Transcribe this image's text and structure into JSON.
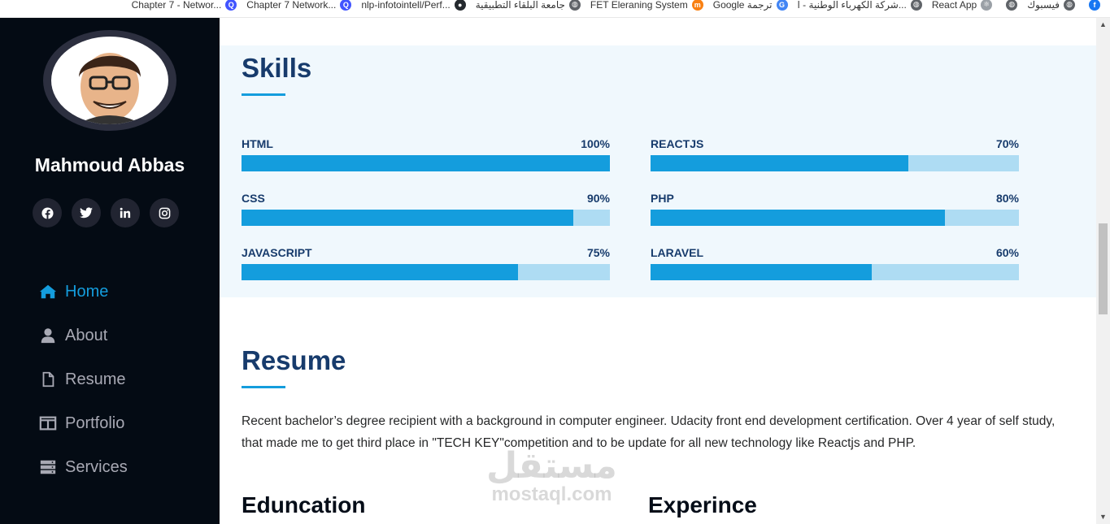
{
  "bookmarks": [
    {
      "label": "Chapter 7 - Networ...",
      "icon": "quizlet-icon",
      "color": "#4255ff"
    },
    {
      "label": "Chapter 7 Network...",
      "icon": "quizlet-icon",
      "color": "#4255ff"
    },
    {
      "label": "nlp-infotointell/Perf...",
      "icon": "github-icon",
      "color": "#24292e"
    },
    {
      "label": "جامعة البلقاء التطبيقية",
      "icon": "globe-icon",
      "color": "#5f6368"
    },
    {
      "label": "FET Eleraning System",
      "icon": "moodle-icon",
      "color": "#f98012"
    },
    {
      "label": "Google ترجمة",
      "icon": "translate-icon",
      "color": "#4285f4"
    },
    {
      "label": "شركة الكهرباء الوطنية - ا...",
      "icon": "globe-icon",
      "color": "#5f6368"
    },
    {
      "label": "React App",
      "icon": "react-icon",
      "color": "#9aa0a6"
    },
    {
      "label": "",
      "icon": "globe-icon",
      "color": "#5f6368"
    },
    {
      "label": "فيسبوك",
      "icon": "globe-icon",
      "color": "#5f6368"
    },
    {
      "label": "",
      "icon": "facebook-icon",
      "color": "#1877f2"
    }
  ],
  "profile": {
    "name": "Mahmoud Abbas"
  },
  "socials": [
    {
      "name": "facebook-icon",
      "glyph": "f"
    },
    {
      "name": "twitter-icon",
      "glyph": "t"
    },
    {
      "name": "linkedin-icon",
      "glyph": "in"
    },
    {
      "name": "instagram-icon",
      "glyph": "◎"
    }
  ],
  "nav": [
    {
      "label": "Home",
      "icon": "home-icon",
      "active": true
    },
    {
      "label": "About",
      "icon": "user-icon",
      "active": false
    },
    {
      "label": "Resume",
      "icon": "file-icon",
      "active": false
    },
    {
      "label": "Portfolio",
      "icon": "book-icon",
      "active": false
    },
    {
      "label": "Services",
      "icon": "server-icon",
      "active": false
    }
  ],
  "skills": {
    "title": "Skills",
    "items": [
      {
        "name": "HTML",
        "value": "100%",
        "percent": 100
      },
      {
        "name": "CSS",
        "value": "90%",
        "percent": 90
      },
      {
        "name": "JAVASCRIPT",
        "value": "75%",
        "percent": 75
      },
      {
        "name": "REACTJS",
        "value": "70%",
        "percent": 70
      },
      {
        "name": "PHP",
        "value": "80%",
        "percent": 80
      },
      {
        "name": "LARAVEL",
        "value": "60%",
        "percent": 60
      }
    ]
  },
  "resume": {
    "title": "Resume",
    "text": "Recent bachelor’s degree recipient with a background in computer engineer. Udacity front end development certification. Over 4 year of self study, that made me to get third place in \"TECH KEY\"competition and to be update for all new technology like Reactjs and PHP.",
    "education_title": "Eduncation",
    "experience_title": "Experince"
  },
  "watermark": {
    "arabic": "مستقل",
    "latin": "mostaql.com"
  },
  "colors": {
    "accent": "#149ddd",
    "sidebar": "#040b14",
    "heading": "#173b6c"
  }
}
